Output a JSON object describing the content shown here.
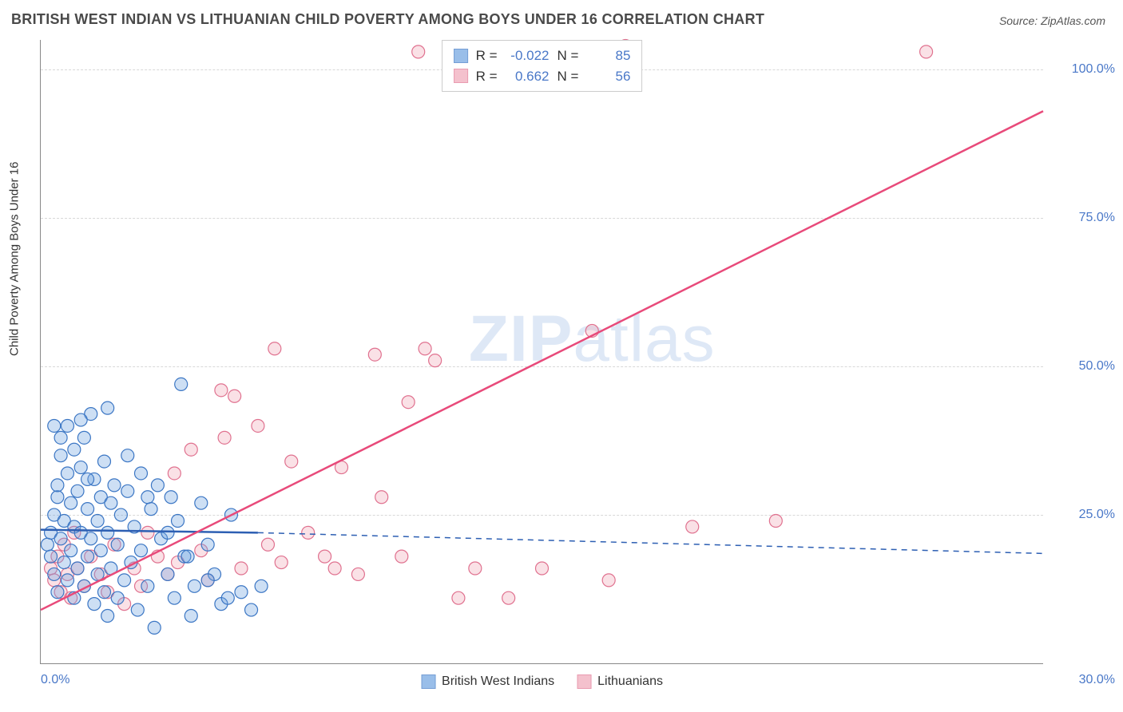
{
  "title": "BRITISH WEST INDIAN VS LITHUANIAN CHILD POVERTY AMONG BOYS UNDER 16 CORRELATION CHART",
  "source_label": "Source: ",
  "source_name": "ZipAtlas.com",
  "y_axis_label": "Child Poverty Among Boys Under 16",
  "watermark_a": "ZIP",
  "watermark_b": "atlas",
  "chart": {
    "type": "scatter",
    "xlim": [
      0,
      30
    ],
    "ylim": [
      0,
      105
    ],
    "y_ticks": [
      {
        "v": 25,
        "label": "25.0%"
      },
      {
        "v": 50,
        "label": "50.0%"
      },
      {
        "v": 75,
        "label": "75.0%"
      },
      {
        "v": 100,
        "label": "100.0%"
      }
    ],
    "x_tick_left": "0.0%",
    "x_tick_right": "30.0%",
    "grid_color": "#d8d8d8",
    "axis_color": "#888888",
    "background": "#ffffff",
    "tick_color": "#4a78c8",
    "marker_radius": 8,
    "marker_stroke_width": 1.2,
    "marker_fill_opacity": 0.35,
    "line_width": 2.5,
    "series": [
      {
        "name": "British West Indians",
        "color": "#6fa3e0",
        "stroke": "#3b76c4",
        "line_color": "#2d5fb3",
        "R": "-0.022",
        "N": "85",
        "trend": {
          "x1": 0,
          "y1": 22.5,
          "x2": 6.5,
          "y2": 22.0,
          "extend_style": "dashed",
          "x2_ext": 30,
          "y2_ext": 18.5
        },
        "points": [
          [
            0.2,
            20
          ],
          [
            0.3,
            22
          ],
          [
            0.3,
            18
          ],
          [
            0.4,
            25
          ],
          [
            0.4,
            15
          ],
          [
            0.5,
            28
          ],
          [
            0.5,
            12
          ],
          [
            0.5,
            30
          ],
          [
            0.6,
            21
          ],
          [
            0.6,
            35
          ],
          [
            0.7,
            17
          ],
          [
            0.7,
            24
          ],
          [
            0.8,
            32
          ],
          [
            0.8,
            14
          ],
          [
            0.8,
            40
          ],
          [
            0.9,
            19
          ],
          [
            0.9,
            27
          ],
          [
            1.0,
            23
          ],
          [
            1.0,
            11
          ],
          [
            1.0,
            36
          ],
          [
            1.1,
            29
          ],
          [
            1.1,
            16
          ],
          [
            1.2,
            33
          ],
          [
            1.2,
            22
          ],
          [
            1.3,
            13
          ],
          [
            1.3,
            38
          ],
          [
            1.4,
            26
          ],
          [
            1.4,
            18
          ],
          [
            1.5,
            42
          ],
          [
            1.5,
            21
          ],
          [
            1.6,
            31
          ],
          [
            1.6,
            10
          ],
          [
            1.7,
            24
          ],
          [
            1.7,
            15
          ],
          [
            1.8,
            28
          ],
          [
            1.8,
            19
          ],
          [
            1.9,
            12
          ],
          [
            1.9,
            34
          ],
          [
            2.0,
            22
          ],
          [
            2.0,
            8
          ],
          [
            2.1,
            27
          ],
          [
            2.1,
            16
          ],
          [
            2.2,
            30
          ],
          [
            2.3,
            20
          ],
          [
            2.3,
            11
          ],
          [
            2.4,
            25
          ],
          [
            2.5,
            14
          ],
          [
            2.6,
            29
          ],
          [
            2.7,
            17
          ],
          [
            2.8,
            23
          ],
          [
            2.9,
            9
          ],
          [
            3.0,
            32
          ],
          [
            3.0,
            19
          ],
          [
            3.2,
            13
          ],
          [
            3.3,
            26
          ],
          [
            3.4,
            6
          ],
          [
            3.5,
            30
          ],
          [
            3.6,
            21
          ],
          [
            3.8,
            15
          ],
          [
            3.9,
            28
          ],
          [
            4.0,
            11
          ],
          [
            4.1,
            24
          ],
          [
            4.3,
            18
          ],
          [
            4.5,
            8
          ],
          [
            4.6,
            13
          ],
          [
            4.8,
            27
          ],
          [
            5.0,
            20
          ],
          [
            5.2,
            15
          ],
          [
            5.4,
            10
          ],
          [
            5.7,
            25
          ],
          [
            4.2,
            47
          ],
          [
            2.0,
            43
          ],
          [
            1.2,
            41
          ],
          [
            0.6,
            38
          ],
          [
            0.4,
            40
          ],
          [
            1.4,
            31
          ],
          [
            2.6,
            35
          ],
          [
            3.2,
            28
          ],
          [
            3.8,
            22
          ],
          [
            4.4,
            18
          ],
          [
            5.0,
            14
          ],
          [
            5.6,
            11
          ],
          [
            6.0,
            12
          ],
          [
            6.3,
            9
          ],
          [
            6.6,
            13
          ]
        ]
      },
      {
        "name": "Lithuanians",
        "color": "#f0a8b8",
        "stroke": "#e0718f",
        "line_color": "#e84a7a",
        "R": "0.662",
        "N": "56",
        "trend": {
          "x1": 0,
          "y1": 9,
          "x2": 30,
          "y2": 93,
          "extend_style": "solid"
        },
        "points": [
          [
            0.3,
            16
          ],
          [
            0.4,
            14
          ],
          [
            0.5,
            18
          ],
          [
            0.6,
            12
          ],
          [
            0.7,
            20
          ],
          [
            0.8,
            15
          ],
          [
            0.9,
            11
          ],
          [
            1.0,
            22
          ],
          [
            1.1,
            16
          ],
          [
            1.3,
            13
          ],
          [
            1.5,
            18
          ],
          [
            1.8,
            15
          ],
          [
            2.0,
            12
          ],
          [
            2.2,
            20
          ],
          [
            2.5,
            10
          ],
          [
            2.8,
            16
          ],
          [
            3.0,
            13
          ],
          [
            3.2,
            22
          ],
          [
            3.5,
            18
          ],
          [
            3.8,
            15
          ],
          [
            4.0,
            32
          ],
          [
            4.1,
            17
          ],
          [
            4.5,
            36
          ],
          [
            4.8,
            19
          ],
          [
            5.0,
            14
          ],
          [
            5.4,
            46
          ],
          [
            5.5,
            38
          ],
          [
            5.8,
            45
          ],
          [
            6.0,
            16
          ],
          [
            6.5,
            40
          ],
          [
            6.8,
            20
          ],
          [
            7.0,
            53
          ],
          [
            7.2,
            17
          ],
          [
            7.5,
            34
          ],
          [
            8.0,
            22
          ],
          [
            8.5,
            18
          ],
          [
            8.8,
            16
          ],
          [
            9.0,
            33
          ],
          [
            9.5,
            15
          ],
          [
            10.0,
            52
          ],
          [
            10.2,
            28
          ],
          [
            10.8,
            18
          ],
          [
            11.0,
            44
          ],
          [
            11.3,
            103
          ],
          [
            11.5,
            53
          ],
          [
            11.8,
            51
          ],
          [
            12.5,
            11
          ],
          [
            13.0,
            16
          ],
          [
            14.0,
            11
          ],
          [
            15.0,
            16
          ],
          [
            16.5,
            56
          ],
          [
            17.0,
            14
          ],
          [
            17.5,
            104
          ],
          [
            19.5,
            23
          ],
          [
            22.0,
            24
          ],
          [
            26.5,
            103
          ]
        ]
      }
    ]
  },
  "corr_legend": {
    "r_label": "R =",
    "n_label": "N ="
  }
}
